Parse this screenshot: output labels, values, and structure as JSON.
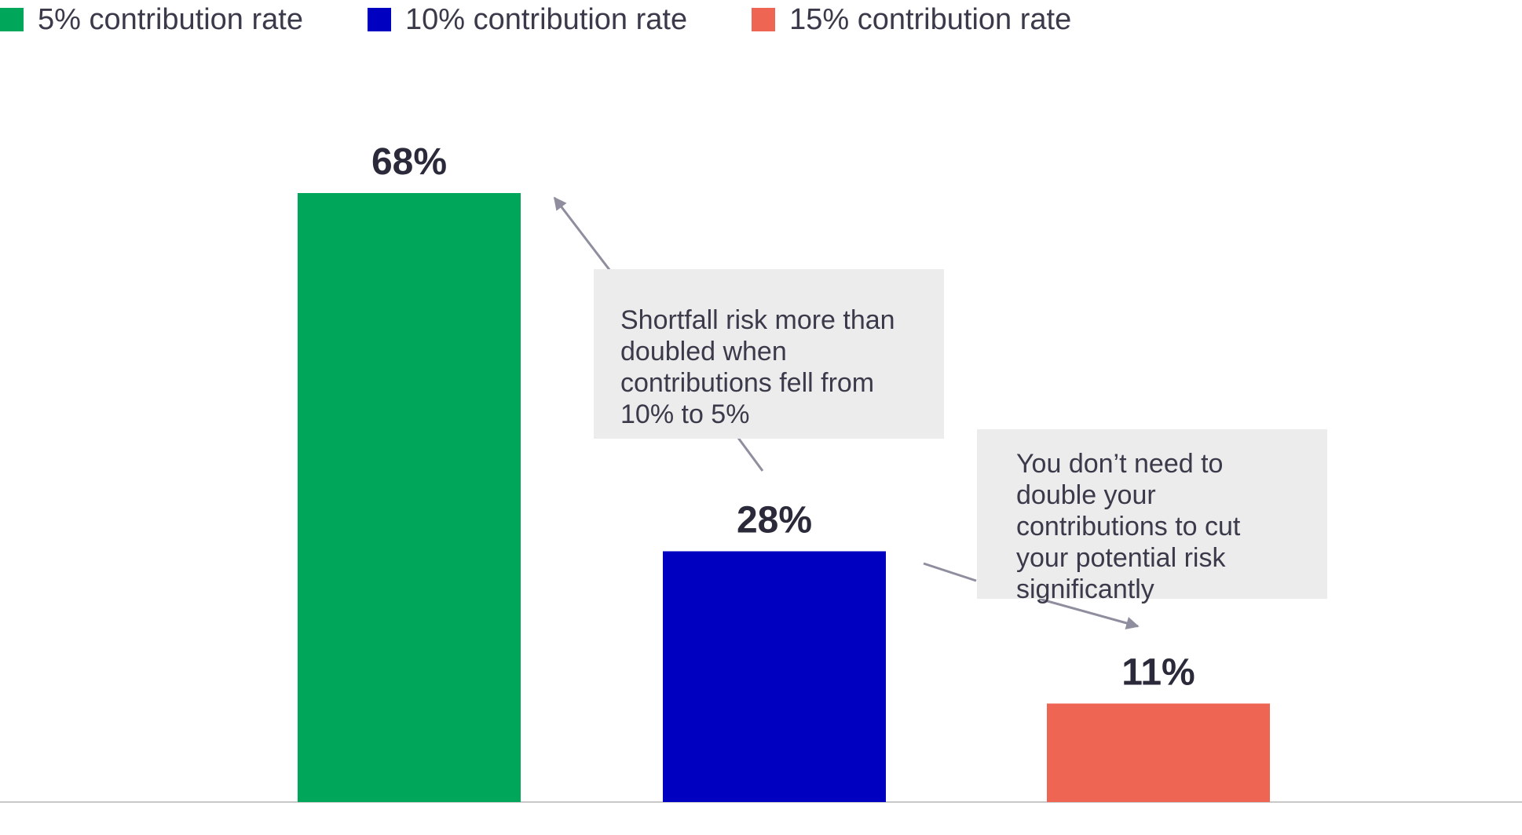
{
  "chart_data": {
    "type": "bar",
    "categories": [
      "5% contribution rate",
      "10% contribution rate",
      "15% contribution rate"
    ],
    "values": [
      68,
      28,
      11
    ],
    "data_labels": [
      "68%",
      "28%",
      "11%"
    ],
    "ylim": [
      0,
      68
    ],
    "grid": false,
    "legend_position": "top-left",
    "legend": [
      {
        "label": "5% contribution rate",
        "color": "#00a65a"
      },
      {
        "label": "10% contribution rate",
        "color": "#0000c0"
      },
      {
        "label": "15% contribution rate",
        "color": "#ee6553"
      }
    ],
    "annotations": [
      {
        "text": "Shortfall risk more than doubled when contributions fell from 10% to 5%",
        "from": "10% contribution rate",
        "to": "5% contribution rate"
      },
      {
        "text": "You don’t need to double your contributions to cut your potential risk significantly",
        "from": "10% contribution rate",
        "to": "15% contribution rate"
      }
    ],
    "colors": {
      "axis": "#c8c8c8",
      "arrow": "#8e8e9e",
      "label": "#2a2a3a"
    }
  }
}
